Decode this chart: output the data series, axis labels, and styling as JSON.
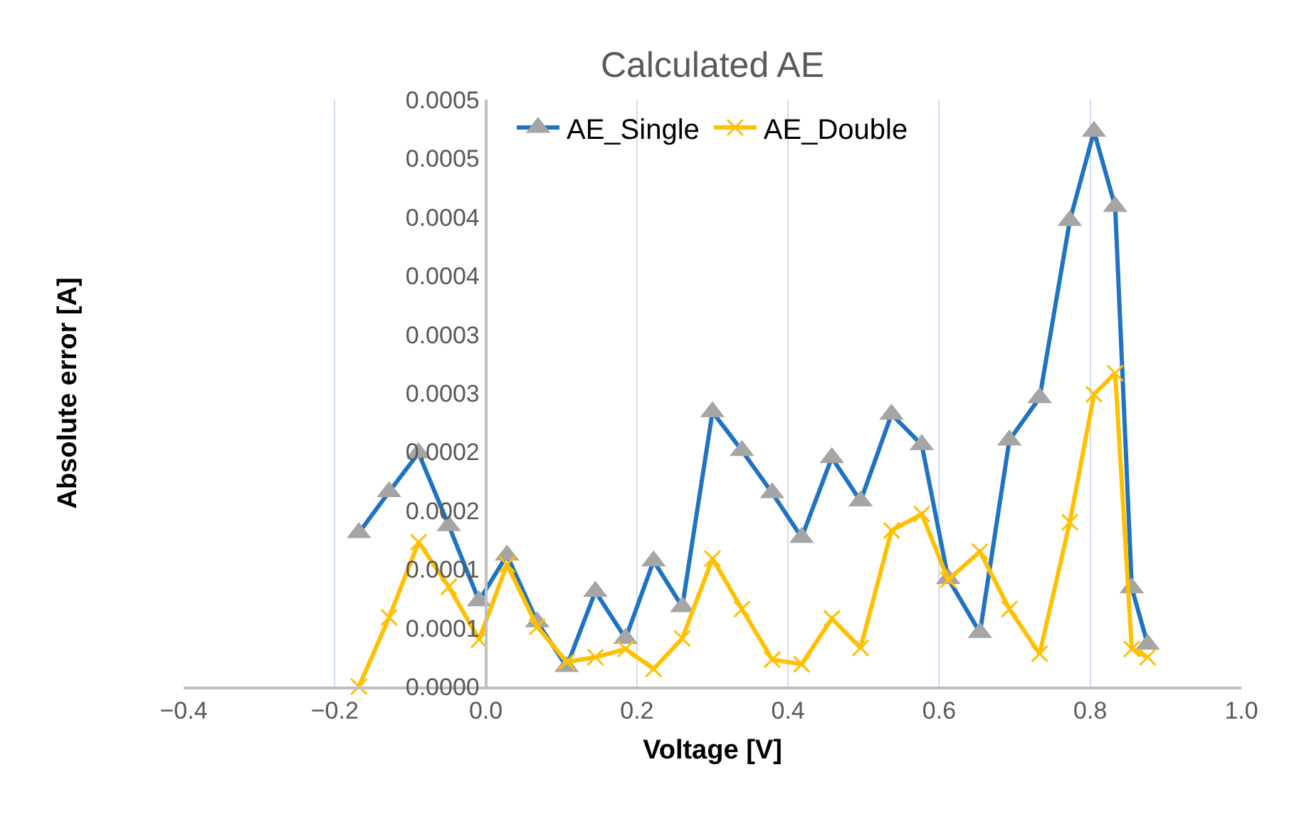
{
  "chart_data": {
    "type": "line",
    "title": "Calculated AE",
    "xlabel": "Voltage [V]",
    "ylabel": "Absolute error [A]",
    "x": [
      -0.168,
      -0.128,
      -0.089,
      -0.049,
      -0.009,
      0.028,
      0.068,
      0.107,
      0.145,
      0.185,
      0.222,
      0.26,
      0.3,
      0.339,
      0.379,
      0.418,
      0.458,
      0.496,
      0.537,
      0.577,
      0.612,
      0.654,
      0.693,
      0.733,
      0.773,
      0.805,
      0.833,
      0.855,
      0.876
    ],
    "series": [
      {
        "name": "AE_Single",
        "color": "#1f72c4",
        "marker": "triangle",
        "values": [
          0.000131,
          0.000166,
          0.000199,
          0.000137,
          7.3e-05,
          0.000112,
          5.5e-05,
          1.7e-05,
          8.1e-05,
          4.1e-05,
          0.000107,
          6.8e-05,
          0.000234,
          0.000201,
          0.000165,
          0.000127,
          0.000195,
          0.000158,
          0.000232,
          0.000206,
          9.2e-05,
          4.6e-05,
          0.00021,
          0.000246,
          0.000397,
          0.000473,
          0.000409,
          8.4e-05,
          3.6e-05
        ]
      },
      {
        "name": "AE_Double",
        "color": "#ffc000",
        "marker": "cross",
        "values": [
          0,
          5.9e-05,
          0.000123,
          8.5e-05,
          4e-05,
          0.000104,
          5.1e-05,
          2.1e-05,
          2.5e-05,
          3.2e-05,
          1.5e-05,
          4.1e-05,
          0.000109,
          6.6e-05,
          2.3e-05,
          1.9e-05,
          5.8e-05,
          3.3e-05,
          0.000133,
          0.000147,
          9.1e-05,
          0.000115,
          6.6e-05,
          2.8e-05,
          0.00014,
          0.000249,
          0.000267,
          3.2e-05,
          2.5e-05
        ]
      }
    ],
    "xlim": [
      -0.4,
      1.0
    ],
    "xticks": [
      {
        "value": -0.4,
        "label": "−0.4"
      },
      {
        "value": -0.2,
        "label": "−0.2"
      },
      {
        "value": 0,
        "label": "0.0"
      },
      {
        "value": 0.2,
        "label": "0.2"
      },
      {
        "value": 0.4,
        "label": "0.4"
      },
      {
        "value": 0.6,
        "label": "0.6"
      },
      {
        "value": 0.8,
        "label": "0.8"
      },
      {
        "value": 1,
        "label": "1.0"
      }
    ],
    "ylim": [
      0,
      0.0005
    ],
    "yticks": [
      {
        "value": 0,
        "label": "0.0000"
      },
      {
        "value": 5e-05,
        "label": "0.0001"
      },
      {
        "value": 0.0001,
        "label": "0.0001"
      },
      {
        "value": 0.00015,
        "label": "0.0002"
      },
      {
        "value": 0.0002,
        "label": "0.0002"
      },
      {
        "value": 0.00025,
        "label": "0.0003"
      },
      {
        "value": 0.0003,
        "label": "0.0003"
      },
      {
        "value": 0.00035,
        "label": "0.0004"
      },
      {
        "value": 0.0004,
        "label": "0.0004"
      },
      {
        "value": 0.00045,
        "label": "0.0005"
      },
      {
        "value": 0.0005,
        "label": "0.0005"
      }
    ],
    "grid": "x",
    "legend": "top",
    "line_style": "solid"
  }
}
